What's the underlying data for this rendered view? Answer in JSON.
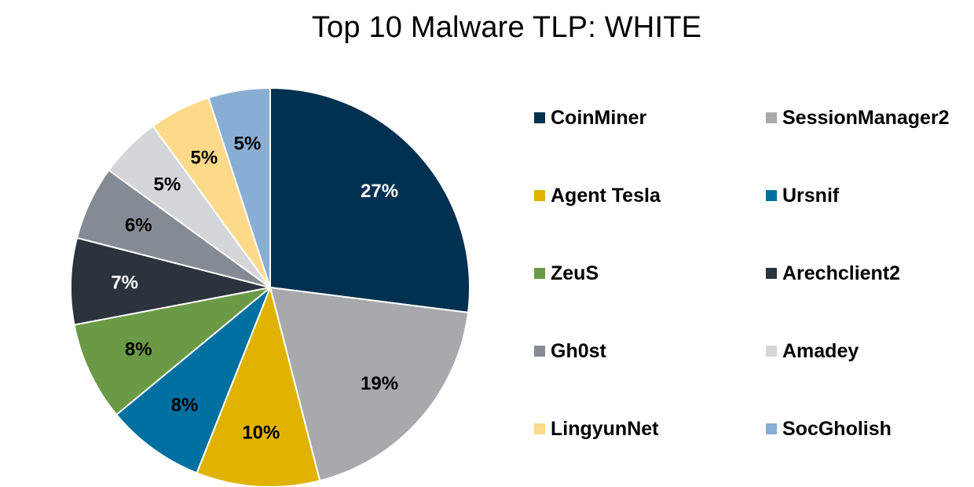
{
  "chart_data": {
    "type": "pie",
    "title": "Top 10 Malware TLP: WHITE",
    "legend_position": "right",
    "slices": [
      {
        "name": "CoinMiner",
        "value": 27,
        "label": "27%",
        "color": "#003150",
        "label_color": "#ffffff"
      },
      {
        "name": "SessionManager2",
        "value": 19,
        "label": "19%",
        "color": "#a8a9ad",
        "label_color": "#000000"
      },
      {
        "name": "Agent Tesla",
        "value": 10,
        "label": "10%",
        "color": "#e0b300",
        "label_color": "#000000"
      },
      {
        "name": "Ursnif",
        "value": 8,
        "label": "8%",
        "color": "#0070a0",
        "label_color": "#000000"
      },
      {
        "name": "ZeuS",
        "value": 8,
        "label": "8%",
        "color": "#6a9a45",
        "label_color": "#000000"
      },
      {
        "name": "Arechclient2",
        "value": 7,
        "label": "7%",
        "color": "#2b343d",
        "label_color": "#ffffff"
      },
      {
        "name": "Gh0st",
        "value": 6,
        "label": "6%",
        "color": "#858b94",
        "label_color": "#000000"
      },
      {
        "name": "Amadey",
        "value": 5,
        "label": "5%",
        "color": "#d4d6d9",
        "label_color": "#000000"
      },
      {
        "name": "LingyunNet",
        "value": 5,
        "label": "5%",
        "color": "#fdd98a",
        "label_color": "#000000"
      },
      {
        "name": "SocGholish",
        "value": 5,
        "label": "5%",
        "color": "#88aed3",
        "label_color": "#000000"
      }
    ]
  }
}
